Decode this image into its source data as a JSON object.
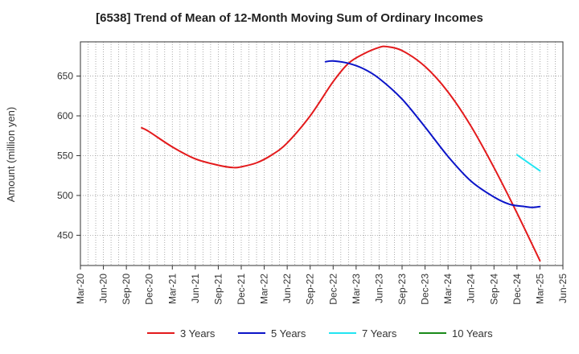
{
  "chart_data": {
    "type": "line",
    "title": "[6538]  Trend of Mean of 12-Month Moving Sum of Ordinary Incomes",
    "xlabel": "",
    "ylabel": "Amount (million yen)",
    "ylim": [
      412,
      693
    ],
    "yticks": [
      450,
      500,
      550,
      600,
      650
    ],
    "x_categories": [
      "Mar-20",
      "Jun-20",
      "Sep-20",
      "Dec-20",
      "Mar-21",
      "Jun-21",
      "Sep-21",
      "Dec-21",
      "Mar-22",
      "Jun-22",
      "Sep-22",
      "Dec-22",
      "Mar-23",
      "Jun-23",
      "Sep-23",
      "Dec-23",
      "Mar-24",
      "Jun-24",
      "Sep-24",
      "Dec-24",
      "Mar-25",
      "Jun-25"
    ],
    "grid": true,
    "legend_position": "bottom",
    "series": [
      {
        "name": "3 Years",
        "color": "#e31a1c",
        "points": [
          [
            "Nov-20",
            585
          ],
          [
            "Dec-20",
            580
          ],
          [
            "Mar-21",
            561
          ],
          [
            "Jun-21",
            546
          ],
          [
            "Sep-21",
            538
          ],
          [
            "Nov-21",
            535
          ],
          [
            "Dec-21",
            536
          ],
          [
            "Feb-22",
            541
          ],
          [
            "Apr-22",
            551
          ],
          [
            "Jun-22",
            566
          ],
          [
            "Sep-22",
            600
          ],
          [
            "Dec-22",
            643
          ],
          [
            "Feb-23",
            666
          ],
          [
            "Apr-23",
            678
          ],
          [
            "Jun-23",
            686
          ],
          [
            "Jul-23",
            687
          ],
          [
            "Sep-23",
            682
          ],
          [
            "Dec-23",
            662
          ],
          [
            "Mar-24",
            630
          ],
          [
            "Jun-24",
            587
          ],
          [
            "Sep-24",
            535
          ],
          [
            "Dec-24",
            478
          ],
          [
            "Mar-25",
            418
          ]
        ]
      },
      {
        "name": "5 Years",
        "color": "#0b14c8",
        "points": [
          [
            "Nov-22",
            668
          ],
          [
            "Dec-22",
            669
          ],
          [
            "Feb-23",
            666
          ],
          [
            "Apr-23",
            659
          ],
          [
            "Jun-23",
            647
          ],
          [
            "Sep-23",
            621
          ],
          [
            "Dec-23",
            586
          ],
          [
            "Mar-24",
            549
          ],
          [
            "Jun-24",
            518
          ],
          [
            "Sep-24",
            498
          ],
          [
            "Nov-24",
            489
          ],
          [
            "Jan-25",
            486
          ],
          [
            "Feb-25",
            485
          ],
          [
            "Mar-25",
            486
          ]
        ]
      },
      {
        "name": "7 Years",
        "color": "#22e5f2",
        "points": [
          [
            "Dec-24",
            551
          ],
          [
            "Mar-25",
            531
          ]
        ]
      },
      {
        "name": "10 Years",
        "color": "#1a8a1a",
        "points": []
      }
    ]
  }
}
